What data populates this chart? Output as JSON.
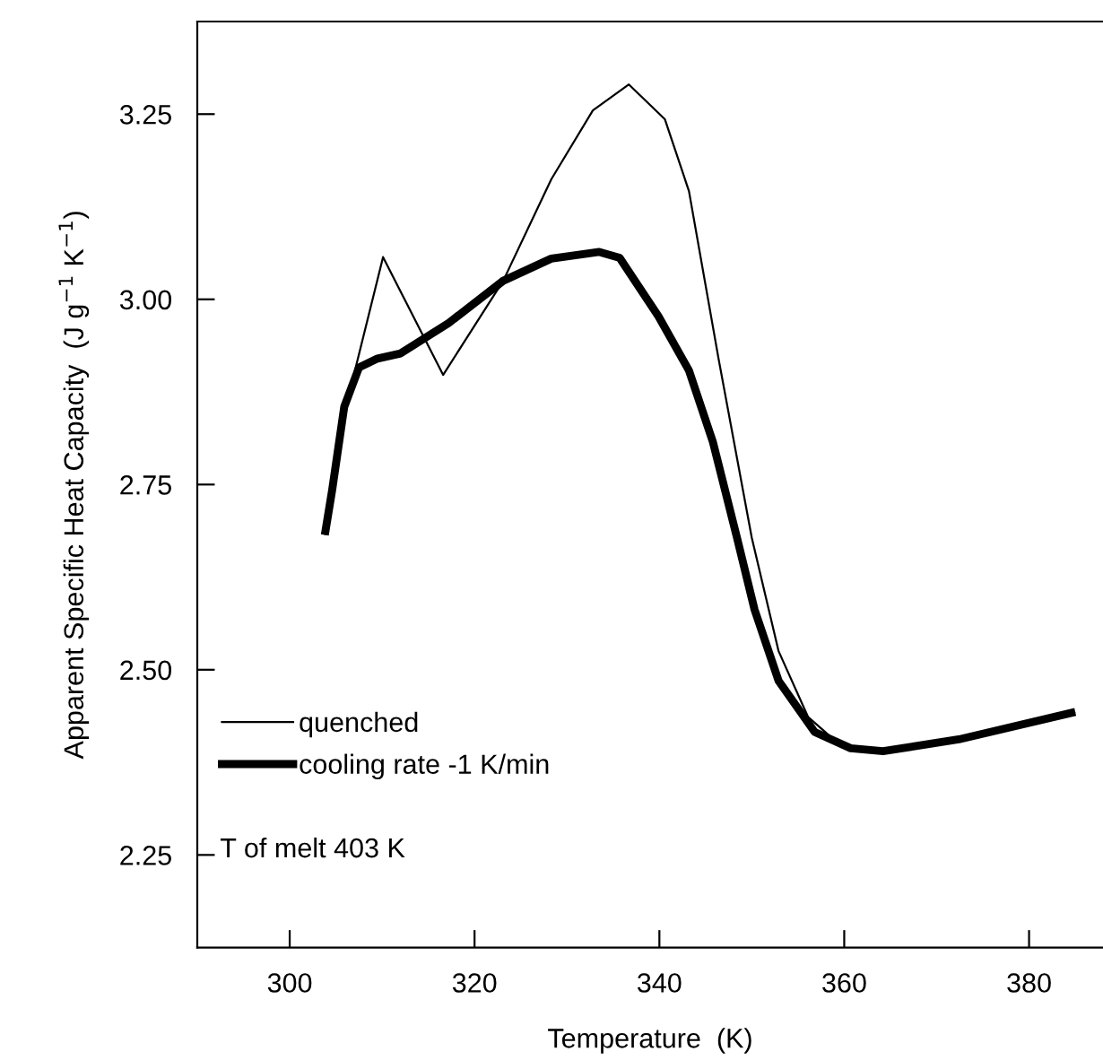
{
  "chart_data": {
    "type": "line",
    "xlabel": "Temperature  (K)",
    "ylabel": "Apparent Specific Heat Capacity  (J g$^{−1}$ K$^{−1}$)",
    "xlim": [
      290,
      388
    ],
    "ylim": [
      2.125,
      3.375
    ],
    "xticks": [
      300,
      320,
      340,
      360,
      380
    ],
    "yticks": [
      {
        "value": 2.25,
        "label": "2.25"
      },
      {
        "value": 2.5,
        "label": "2.50"
      },
      {
        "value": 2.75,
        "label": "2.75"
      },
      {
        "value": 3.0,
        "label": "3.00"
      },
      {
        "value": 3.25,
        "label": "3.25"
      }
    ],
    "grid": false,
    "legend": "bottom left",
    "marker": "none",
    "line_style": "solid",
    "annotations": [
      "T of melt 403 K"
    ],
    "series": [
      {
        "name": "quenched",
        "color": "#000000",
        "x": [
          303.8,
          304.6,
          305.9,
          306.9,
          310.1,
          316.6,
          323.1,
          328.3,
          332.8,
          336.7,
          340.6,
          343.2,
          346.4,
          350.0,
          352.9,
          356.1,
          359.4,
          363.9,
          372.4,
          385.0
        ],
        "values": [
          2.682,
          2.743,
          2.855,
          2.896,
          3.057,
          2.898,
          3.025,
          3.162,
          3.255,
          3.29,
          3.243,
          3.146,
          2.92,
          2.678,
          2.525,
          2.436,
          2.4,
          2.39,
          2.406,
          2.443
        ]
      },
      {
        "name": "cooling rate -1 K/min",
        "color": "#000000",
        "x": [
          303.8,
          304.6,
          305.9,
          307.5,
          309.5,
          312.0,
          317.2,
          323.1,
          328.3,
          333.5,
          335.7,
          339.9,
          343.2,
          345.8,
          348.4,
          350.3,
          352.9,
          356.8,
          360.7,
          364.2,
          372.4,
          385.0
        ],
        "values": [
          2.682,
          2.743,
          2.855,
          2.908,
          2.92,
          2.927,
          2.968,
          3.025,
          3.055,
          3.064,
          3.056,
          2.977,
          2.904,
          2.807,
          2.678,
          2.581,
          2.485,
          2.416,
          2.394,
          2.39,
          2.406,
          2.443
        ]
      }
    ]
  }
}
